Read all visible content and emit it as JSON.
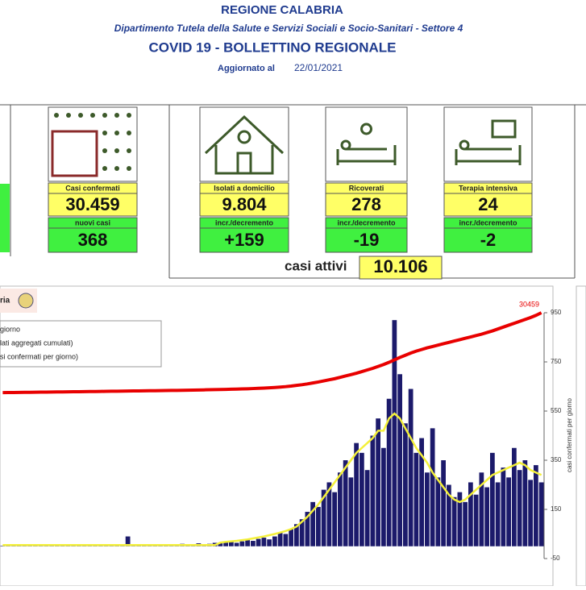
{
  "header": {
    "title": "REGIONE CALABRIA",
    "subtitle": "Dipartimento Tutela della Salute e Servizi Sociali e Socio-Sanitari - Settore 4",
    "bulletin_title": "COVID 19 - BOLLETTINO REGIONALE",
    "updated_label": "Aggiornato al",
    "updated_date": "22/01/2021"
  },
  "cards": [
    {
      "label": "Casi confermati",
      "value": "30.459",
      "change_label": "nuovi casi",
      "change": "368"
    },
    {
      "label": "Isolati a domicilio",
      "value": "9.804",
      "change_label": "incr./decremento",
      "change": "+159"
    },
    {
      "label": "Ricoverati",
      "value": "278",
      "change_label": "incr./decremento",
      "change": "-19"
    },
    {
      "label": "Terapia intensiva",
      "value": "24",
      "change_label": "incr./decremento",
      "change": "-2"
    }
  ],
  "active": {
    "label": "casi attivi",
    "value": "10.106"
  },
  "chart_data": {
    "type": "bar",
    "panel_title": "ria",
    "y_label": "casi confermati per giorno",
    "annotation": "30459",
    "ylim": [
      -50,
      950
    ],
    "yticks": [
      950,
      750,
      550,
      350,
      150,
      -50
    ],
    "y2lim": [
      -59550,
      30459
    ],
    "categories": [
      null,
      null,
      null,
      null,
      null,
      null,
      null,
      null,
      null,
      null,
      null,
      null,
      null,
      null,
      null,
      null,
      null,
      null,
      null,
      null,
      null,
      null,
      null,
      null,
      null,
      null,
      null,
      null,
      null,
      null,
      null,
      null,
      null,
      null,
      null,
      null,
      null,
      null,
      null,
      null,
      null,
      null,
      null,
      null,
      null,
      null,
      null,
      null,
      null,
      null,
      null,
      null,
      null,
      null,
      null,
      null,
      null,
      null,
      null,
      null,
      null,
      null,
      null,
      null,
      null,
      null,
      null,
      null,
      null,
      null,
      null,
      null,
      null,
      null,
      null,
      null,
      null,
      null,
      null,
      null,
      null,
      null,
      null,
      null,
      null,
      null,
      null,
      null,
      null,
      null,
      null,
      null,
      null,
      null,
      null,
      null,
      null,
      null,
      null,
      null
    ],
    "series": [
      {
        "name": "giorno",
        "kind": "bar",
        "color": "#1c1a6b",
        "values": [
          2,
          3,
          1,
          4,
          2,
          5,
          3,
          2,
          6,
          4,
          3,
          5,
          2,
          4,
          7,
          3,
          5,
          4,
          6,
          3,
          8,
          5,
          4,
          40,
          6,
          5,
          7,
          4,
          9,
          6,
          8,
          5,
          7,
          10,
          6,
          9,
          12,
          8,
          10,
          14,
          12,
          15,
          18,
          14,
          20,
          25,
          22,
          30,
          35,
          28,
          40,
          55,
          50,
          70,
          90,
          110,
          140,
          180,
          160,
          230,
          260,
          220,
          300,
          350,
          280,
          420,
          380,
          310,
          450,
          520,
          400,
          600,
          920,
          700,
          500,
          640,
          380,
          440,
          300,
          480,
          280,
          350,
          250,
          200,
          220,
          180,
          260,
          210,
          300,
          240,
          380,
          260,
          320,
          280,
          400,
          310,
          350,
          270,
          330,
          260
        ]
      },
      {
        "name": "lati aggregati cumulati)",
        "kind": "line",
        "axis": "y2",
        "color": "#e80000",
        "values": [
          1200,
          1225,
          1250,
          1275,
          1300,
          1325,
          1350,
          1375,
          1400,
          1425,
          1450,
          1475,
          1500,
          1525,
          1550,
          1575,
          1600,
          1625,
          1650,
          1700,
          1720,
          1740,
          1760,
          1800,
          1820,
          1840,
          1860,
          1890,
          1910,
          1940,
          1970,
          2000,
          2030,
          2070,
          2100,
          2140,
          2180,
          2220,
          2260,
          2310,
          2350,
          2400,
          2450,
          2500,
          2560,
          2620,
          2700,
          2780,
          2880,
          2980,
          3100,
          3250,
          3400,
          3600,
          3850,
          4100,
          4400,
          4750,
          5100,
          5500,
          5900,
          6300,
          6800,
          7300,
          7800,
          8300,
          8900,
          9500,
          10100,
          10800,
          11500,
          12300,
          13200,
          14100,
          14900,
          15700,
          16400,
          17000,
          17600,
          18100,
          18600,
          19100,
          19600,
          20100,
          20600,
          21100,
          21600,
          22100,
          22600,
          23200,
          23800,
          24500,
          25200,
          25900,
          26600,
          27300,
          28000,
          28700,
          29500,
          30459
        ]
      },
      {
        "name": "si confermati per giorno)",
        "kind": "line",
        "color": "#f4f03a",
        "values": [
          5,
          5,
          5,
          5,
          5,
          5,
          5,
          5,
          5,
          5,
          5,
          5,
          5,
          5,
          5,
          5,
          5,
          5,
          5,
          5,
          5,
          5,
          5,
          5,
          5,
          5,
          5,
          5,
          5,
          5,
          5,
          5,
          5,
          5,
          5,
          5,
          5,
          5,
          5,
          5,
          15,
          18,
          20,
          22,
          25,
          28,
          32,
          36,
          40,
          45,
          50,
          56,
          62,
          70,
          80,
          100,
          120,
          145,
          170,
          200,
          230,
          260,
          290,
          320,
          350,
          380,
          400,
          420,
          440,
          470,
          470,
          520,
          540,
          520,
          480,
          440,
          400,
          370,
          340,
          300,
          270,
          240,
          210,
          190,
          180,
          190,
          210,
          230,
          250,
          270,
          290,
          300,
          310,
          320,
          330,
          340,
          330,
          310,
          300,
          290
        ]
      }
    ]
  }
}
